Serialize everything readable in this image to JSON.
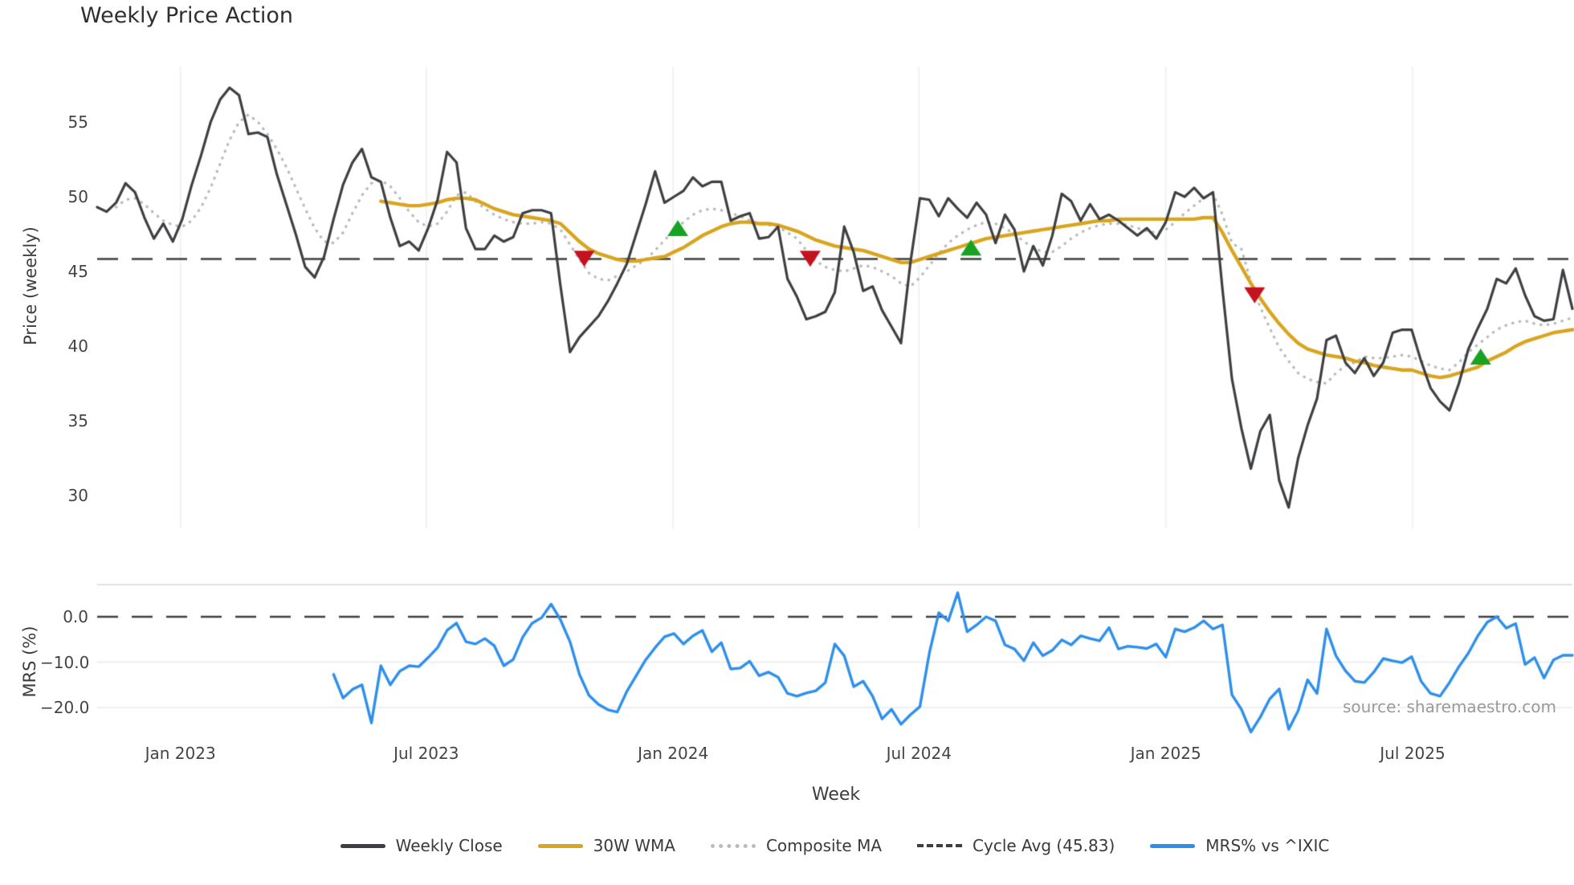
{
  "title": "Weekly Price Action",
  "source_text": "source: sharemaestro.com",
  "axes": {
    "price_label": "Price (weekly)",
    "mrs_label": "MRS (%)",
    "x_label": "Week"
  },
  "colors": {
    "close": "#3d3f42",
    "wma": "#d9a520",
    "composite": "#b9bcbe",
    "cycle": "#3f3f3f",
    "mrs": "#2e8feb",
    "marker_up": "#18a224",
    "marker_down": "#c4121f",
    "grid": "#eceef0",
    "mrs_grid": "#e8eaec",
    "spine": "#d3d6d9",
    "tick_text": "#444444",
    "source": "#9a9a9a"
  },
  "legend": [
    {
      "label": "Weekly Close",
      "color": "#3d3f42",
      "style": "solid"
    },
    {
      "label": "30W WMA",
      "color": "#d9a520",
      "style": "solid"
    },
    {
      "label": "Composite MA",
      "color": "#b9bcbe",
      "style": "dotted"
    },
    {
      "label": "Cycle Avg (45.83)",
      "color": "#3f3f3f",
      "style": "dashed"
    },
    {
      "label": "MRS% vs ^IXIC",
      "color": "#2e8feb",
      "style": "solid"
    }
  ],
  "chart_data": {
    "type": "line",
    "x_unit": "weeks",
    "total_weeks": 156,
    "x_ticks": [
      {
        "week": 8.8,
        "label": "Jan 2023"
      },
      {
        "week": 34.8,
        "label": "Jul 2023"
      },
      {
        "week": 60.9,
        "label": "Jan 2024"
      },
      {
        "week": 86.9,
        "label": "Jul 2024"
      },
      {
        "week": 113.0,
        "label": "Jan 2025"
      },
      {
        "week": 139.1,
        "label": "Jul 2025"
      }
    ],
    "price_axis": {
      "ylim": [
        27.8,
        58.7
      ],
      "ticks": [
        {
          "v": 55,
          "label": "55"
        },
        {
          "v": 50,
          "label": "50"
        },
        {
          "v": 45,
          "label": "45"
        },
        {
          "v": 40,
          "label": "40"
        },
        {
          "v": 35,
          "label": "35"
        },
        {
          "v": 30,
          "label": "30"
        }
      ]
    },
    "mrs_axis": {
      "ylim": [
        -26.9,
        6.8
      ],
      "ticks": [
        {
          "v": 0,
          "label": "0.0"
        },
        {
          "v": -10,
          "label": "−10.0"
        },
        {
          "v": -20,
          "label": "−20.0"
        }
      ]
    },
    "cycle_avg": 45.83,
    "series": {
      "weekly_close": {
        "start_week": 0,
        "values": [
          49.3,
          49.0,
          49.6,
          50.9,
          50.3,
          48.6,
          47.2,
          48.2,
          47.0,
          48.5,
          50.8,
          52.8,
          55.0,
          56.5,
          57.3,
          56.8,
          54.2,
          54.3,
          54.0,
          51.5,
          49.5,
          47.5,
          45.3,
          44.6,
          46.0,
          48.5,
          50.8,
          52.3,
          53.2,
          51.3,
          51.0,
          48.6,
          46.7,
          47.0,
          46.4,
          47.9,
          49.8,
          53.0,
          52.3,
          47.9,
          46.5,
          46.5,
          47.4,
          47.0,
          47.3,
          48.9,
          49.1,
          49.1,
          48.9,
          44.0,
          39.6,
          40.6,
          41.3,
          42.0,
          43.0,
          44.2,
          45.5,
          47.5,
          49.5,
          51.7,
          49.6,
          50.0,
          50.4,
          51.3,
          50.7,
          51.0,
          51.0,
          48.4,
          48.7,
          48.9,
          47.2,
          47.3,
          48.0,
          44.5,
          43.3,
          41.8,
          42.0,
          42.3,
          43.6,
          48.0,
          46.3,
          43.7,
          44.0,
          42.4,
          41.3,
          40.2,
          45.6,
          49.9,
          49.8,
          48.7,
          49.9,
          49.2,
          48.6,
          49.6,
          48.8,
          46.9,
          48.8,
          47.8,
          45.0,
          46.7,
          45.4,
          47.4,
          50.2,
          49.7,
          48.4,
          49.5,
          48.5,
          48.8,
          48.4,
          47.9,
          47.4,
          47.9,
          47.2,
          48.3,
          50.3,
          50.0,
          50.6,
          49.9,
          50.3,
          43.8,
          37.8,
          34.5,
          31.8,
          34.3,
          35.4,
          31.0,
          29.2,
          32.5,
          34.7,
          36.5,
          40.4,
          40.7,
          38.9,
          38.2,
          39.2,
          38.0,
          38.9,
          40.9,
          41.1,
          41.1,
          39.0,
          37.2,
          36.3,
          35.7,
          37.5,
          39.8,
          41.2,
          42.5,
          44.5,
          44.2,
          45.2,
          43.4,
          42.0,
          41.7,
          41.8,
          45.1,
          42.5
        ]
      },
      "wma_30w": {
        "start_week": 30,
        "values": [
          49.7,
          49.6,
          49.5,
          49.4,
          49.4,
          49.5,
          49.6,
          49.8,
          49.9,
          49.9,
          49.8,
          49.5,
          49.2,
          49.0,
          48.8,
          48.7,
          48.6,
          48.5,
          48.4,
          48.2,
          47.6,
          47.0,
          46.5,
          46.2,
          46.0,
          45.8,
          45.7,
          45.7,
          45.8,
          45.9,
          46.0,
          46.3,
          46.6,
          47.0,
          47.4,
          47.7,
          48.0,
          48.2,
          48.3,
          48.3,
          48.2,
          48.2,
          48.1,
          47.9,
          47.7,
          47.4,
          47.1,
          46.9,
          46.7,
          46.6,
          46.5,
          46.4,
          46.2,
          46.0,
          45.8,
          45.6,
          45.6,
          45.8,
          46.0,
          46.2,
          46.4,
          46.6,
          46.8,
          47.0,
          47.2,
          47.3,
          47.4,
          47.5,
          47.6,
          47.7,
          47.8,
          47.9,
          48.0,
          48.1,
          48.2,
          48.3,
          48.4,
          48.4,
          48.5,
          48.5,
          48.5,
          48.5,
          48.5,
          48.5,
          48.5,
          48.5,
          48.5,
          48.6,
          48.6,
          47.6,
          46.4,
          45.3,
          44.2,
          43.2,
          42.3,
          41.5,
          40.8,
          40.2,
          39.8,
          39.6,
          39.4,
          39.3,
          39.2,
          39.0,
          38.9,
          38.7,
          38.6,
          38.5,
          38.4,
          38.4,
          38.2,
          38.0,
          37.9,
          38.0,
          38.2,
          38.4,
          38.6,
          39.0,
          39.3,
          39.6,
          40.0,
          40.3,
          40.5,
          40.7,
          40.9,
          41.0,
          41.1
        ]
      },
      "composite_ma": {
        "start_week": 2,
        "values": [
          49.3,
          49.8,
          49.9,
          49.5,
          48.9,
          48.4,
          48.1,
          48.0,
          48.4,
          49.3,
          50.6,
          52.2,
          53.8,
          55.0,
          55.5,
          55.0,
          54.2,
          53.2,
          52.0,
          50.6,
          49.2,
          47.9,
          47.0,
          46.9,
          47.6,
          48.9,
          50.1,
          50.9,
          51.1,
          50.7,
          49.9,
          49.0,
          48.3,
          48.0,
          48.2,
          49.0,
          50.1,
          50.3,
          49.7,
          49.2,
          48.8,
          48.5,
          48.3,
          48.2,
          48.2,
          48.3,
          48.2,
          47.8,
          46.8,
          45.8,
          44.9,
          44.5,
          44.4,
          44.7,
          45.0,
          45.4,
          45.8,
          46.4,
          47.1,
          47.7,
          48.3,
          48.8,
          49.1,
          49.2,
          49.1,
          48.9,
          48.7,
          48.4,
          48.2,
          48.1,
          48.0,
          47.6,
          47.2,
          46.4,
          45.7,
          45.3,
          45.1,
          45.0,
          45.2,
          45.4,
          45.3,
          45.0,
          44.7,
          44.2,
          44.0,
          44.6,
          45.4,
          46.2,
          46.9,
          47.4,
          47.8,
          48.1,
          48.3,
          48.2,
          47.9,
          47.5,
          47.0,
          46.6,
          46.3,
          46.3,
          46.7,
          47.2,
          47.6,
          47.9,
          48.1,
          48.2,
          48.2,
          48.1,
          47.9,
          47.7,
          47.6,
          47.8,
          48.3,
          48.9,
          49.4,
          49.9,
          50.2,
          48.8,
          46.9,
          46.5,
          44.3,
          42.6,
          41.2,
          39.9,
          39.0,
          38.2,
          37.8,
          37.6,
          37.5,
          38.2,
          38.7,
          38.9,
          39.3,
          39.2,
          39.2,
          39.3,
          39.4,
          39.3,
          39.0,
          38.7,
          38.5,
          38.4,
          38.9,
          39.6,
          40.1,
          40.6,
          41.1,
          41.4,
          41.6,
          41.7,
          41.5,
          41.4,
          41.5,
          41.7,
          41.9
        ]
      },
      "mrs_pct": {
        "start_week": 25,
        "values": [
          -12.7,
          -17.9,
          -16.0,
          -15.0,
          -23.4,
          -10.8,
          -15.0,
          -12.0,
          -10.8,
          -11.0,
          -9.0,
          -6.8,
          -3.0,
          -1.4,
          -5.5,
          -6.0,
          -4.8,
          -6.4,
          -10.8,
          -9.4,
          -4.5,
          -1.4,
          -0.2,
          2.8,
          -0.7,
          -5.5,
          -12.7,
          -17.3,
          -19.3,
          -20.5,
          -21.0,
          -16.5,
          -13.0,
          -9.5,
          -6.8,
          -4.4,
          -3.7,
          -6.0,
          -4.2,
          -3.0,
          -7.7,
          -5.7,
          -11.5,
          -11.3,
          -9.8,
          -13.0,
          -12.2,
          -13.3,
          -16.9,
          -17.5,
          -16.8,
          -16.3,
          -14.5,
          -6.0,
          -8.6,
          -15.4,
          -14.2,
          -17.5,
          -22.5,
          -20.4,
          -23.7,
          -21.6,
          -19.8,
          -8.0,
          0.9,
          -0.9,
          5.3,
          -3.3,
          -1.8,
          0.0,
          -0.9,
          -6.2,
          -7.1,
          -9.7,
          -5.7,
          -8.6,
          -7.4,
          -5.1,
          -6.2,
          -4.2,
          -4.8,
          -5.3,
          -2.4,
          -7.1,
          -6.5,
          -6.7,
          -7.0,
          -6.0,
          -8.9,
          -2.7,
          -3.3,
          -2.4,
          -0.9,
          -2.7,
          -1.8,
          -17.2,
          -20.4,
          -25.4,
          -22.1,
          -18.1,
          -15.9,
          -24.8,
          -20.7,
          -13.9,
          -16.9,
          -2.7,
          -8.6,
          -11.9,
          -14.2,
          -14.5,
          -12.2,
          -9.2,
          -9.7,
          -10.1,
          -8.8,
          -14.2,
          -16.9,
          -17.5,
          -14.5,
          -11.0,
          -8.0,
          -4.2,
          -1.2,
          0.0,
          -2.5,
          -1.5,
          -10.5,
          -9.0,
          -13.5,
          -9.5,
          -8.5,
          -8.5
        ]
      }
    },
    "markers": [
      {
        "week": 51.5,
        "value": 45.85,
        "dir": "down"
      },
      {
        "week": 61.4,
        "value": 47.9,
        "dir": "up"
      },
      {
        "week": 75.4,
        "value": 45.85,
        "dir": "down"
      },
      {
        "week": 92.4,
        "value": 46.6,
        "dir": "up"
      },
      {
        "week": 122.4,
        "value": 43.4,
        "dir": "down"
      },
      {
        "week": 146.3,
        "value": 39.3,
        "dir": "up"
      }
    ]
  }
}
